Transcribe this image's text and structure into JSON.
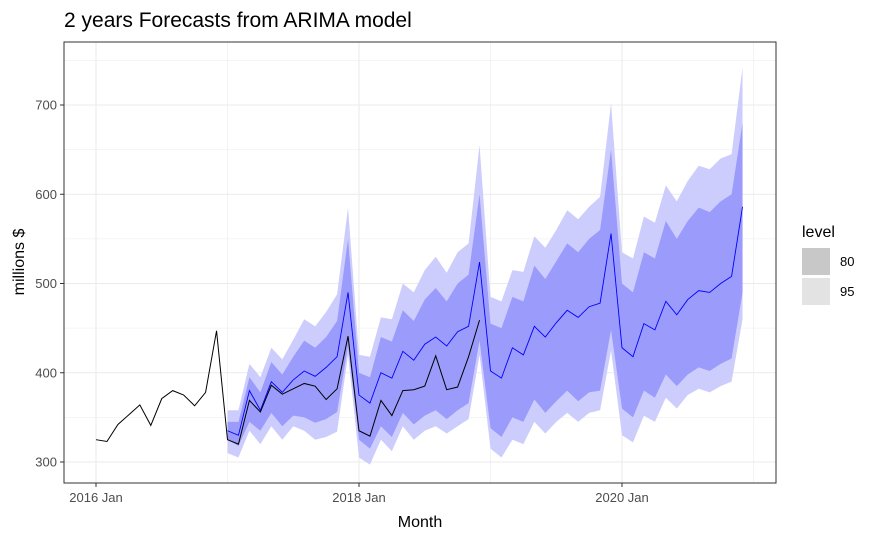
{
  "chart_data": {
    "type": "line",
    "title": "2 years Forecasts from ARIMA model",
    "xlabel": "Month",
    "ylabel": "millions $",
    "x_ticks": [
      "2016 Jan",
      "2018 Jan",
      "2020 Jan"
    ],
    "y_ticks": [
      300,
      400,
      500,
      600,
      700
    ],
    "ylim": [
      275,
      760
    ],
    "grid": true,
    "legend": {
      "title": "level",
      "position": "right",
      "items": [
        {
          "label": "80",
          "color": "#c8c8c8"
        },
        {
          "label": "95",
          "color": "#e3e3e3"
        }
      ]
    },
    "colors": {
      "history": "#000000",
      "forecast_mean": "#0000ff",
      "band_80": "#9b9bfb",
      "band_95": "#cdcdfd",
      "grid": "#ebebeb"
    },
    "history": {
      "name": "history",
      "x": [
        "2016-01",
        "2016-02",
        "2016-03",
        "2016-04",
        "2016-05",
        "2016-06",
        "2016-07",
        "2016-08",
        "2016-09",
        "2016-10",
        "2016-11",
        "2016-12",
        "2017-01",
        "2017-02",
        "2017-03",
        "2017-04",
        "2017-05",
        "2017-06",
        "2017-07",
        "2017-08",
        "2017-09",
        "2017-10",
        "2017-11",
        "2017-12",
        "2018-01",
        "2018-02",
        "2018-03",
        "2018-04",
        "2018-05",
        "2018-06",
        "2018-07",
        "2018-08",
        "2018-09",
        "2018-10",
        "2018-11",
        "2018-12"
      ],
      "values": [
        325,
        323,
        342,
        353,
        364,
        341,
        371,
        380,
        375,
        363,
        378,
        447,
        325,
        320,
        369,
        356,
        386,
        376,
        382,
        388,
        385,
        370,
        382,
        441,
        335,
        329,
        369,
        352,
        380,
        381,
        385,
        419,
        381,
        384,
        418,
        459
      ]
    },
    "forecast": {
      "x": [
        "2017-01",
        "2017-02",
        "2017-03",
        "2017-04",
        "2017-05",
        "2017-06",
        "2017-07",
        "2017-08",
        "2017-09",
        "2017-10",
        "2017-11",
        "2017-12",
        "2018-01",
        "2018-02",
        "2018-03",
        "2018-04",
        "2018-05",
        "2018-06",
        "2018-07",
        "2018-08",
        "2018-09",
        "2018-10",
        "2018-11",
        "2018-12",
        "2019-01",
        "2019-02",
        "2019-03",
        "2019-04",
        "2019-05",
        "2019-06",
        "2019-07",
        "2019-08",
        "2019-09",
        "2019-10",
        "2019-11",
        "2019-12",
        "2020-01",
        "2020-02",
        "2020-03",
        "2020-04",
        "2020-05",
        "2020-06",
        "2020-07",
        "2020-08",
        "2020-09",
        "2020-10",
        "2020-11",
        "2020-12"
      ],
      "mean": [
        335,
        330,
        380,
        358,
        390,
        378,
        392,
        402,
        396,
        406,
        418,
        490,
        375,
        366,
        400,
        394,
        424,
        414,
        432,
        440,
        430,
        446,
        452,
        524,
        402,
        394,
        428,
        420,
        452,
        440,
        456,
        470,
        462,
        474,
        478,
        556,
        428,
        418,
        455,
        448,
        480,
        465,
        482,
        492,
        490,
        500,
        508,
        586
      ],
      "lower_80": [
        325,
        318,
        345,
        335,
        355,
        340,
        352,
        350,
        344,
        348,
        356,
        430,
        325,
        315,
        340,
        328,
        355,
        342,
        352,
        358,
        348,
        358,
        366,
        436,
        338,
        328,
        350,
        345,
        370,
        355,
        368,
        380,
        368,
        378,
        380,
        448,
        360,
        350,
        380,
        372,
        398,
        385,
        398,
        406,
        402,
        410,
        416,
        490
      ],
      "upper_80": [
        345,
        345,
        395,
        378,
        412,
        398,
        418,
        436,
        428,
        440,
        458,
        550,
        400,
        395,
        440,
        435,
        470,
        458,
        482,
        495,
        480,
        500,
        510,
        600,
        455,
        450,
        485,
        480,
        520,
        505,
        525,
        545,
        535,
        550,
        560,
        650,
        500,
        490,
        535,
        528,
        570,
        550,
        570,
        585,
        580,
        592,
        600,
        680
      ],
      "lower_95": [
        310,
        305,
        335,
        320,
        340,
        325,
        340,
        335,
        325,
        328,
        334,
        420,
        305,
        297,
        325,
        312,
        340,
        325,
        335,
        340,
        332,
        340,
        348,
        420,
        315,
        305,
        325,
        320,
        345,
        332,
        345,
        355,
        345,
        355,
        358,
        425,
        330,
        322,
        352,
        345,
        372,
        360,
        375,
        382,
        378,
        385,
        390,
        460
      ],
      "upper_95": [
        358,
        358,
        410,
        395,
        428,
        415,
        437,
        460,
        452,
        468,
        488,
        585,
        420,
        418,
        462,
        460,
        500,
        490,
        515,
        530,
        512,
        535,
        545,
        655,
        485,
        480,
        515,
        513,
        553,
        540,
        560,
        582,
        572,
        586,
        597,
        702,
        535,
        528,
        575,
        568,
        610,
        592,
        615,
        632,
        628,
        640,
        645,
        742
      ]
    }
  }
}
